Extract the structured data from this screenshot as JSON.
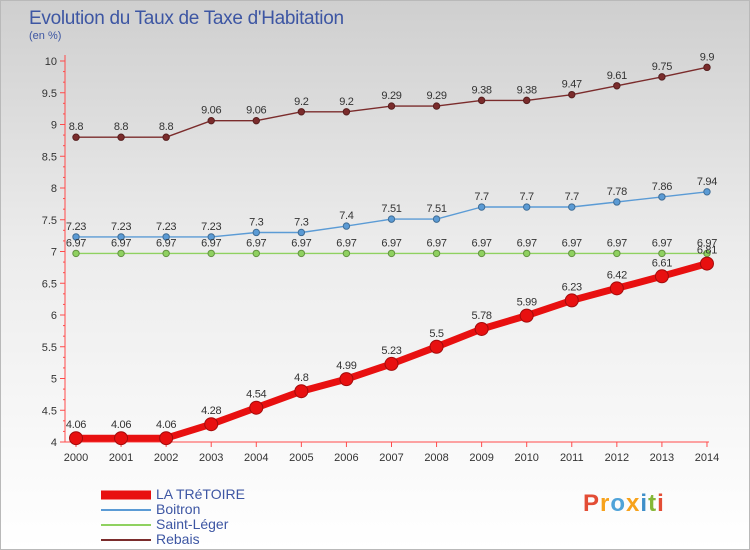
{
  "header": {
    "title": "Evolution du Taux de Taxe d'Habitation",
    "subtitle": "(en %)"
  },
  "logo": {
    "text": "Proxiti",
    "letter_colors": [
      "#e34d35",
      "#f7a21b",
      "#4fa3d9",
      "#f7a21b",
      "#3f8fc9",
      "#84b736",
      "#e34d35"
    ]
  },
  "chart_data": {
    "type": "line",
    "title": "Evolution du Taux de Taxe d'Habitation",
    "subtitle": "(en %)",
    "x": [
      "2000",
      "2001",
      "2002",
      "2003",
      "2004",
      "2005",
      "2006",
      "2007",
      "2008",
      "2009",
      "2010",
      "2011",
      "2012",
      "2013",
      "2014"
    ],
    "ylim": [
      4,
      10
    ],
    "yticks": [
      "4",
      "4.5",
      "5",
      "5.5",
      "6",
      "6.5",
      "7",
      "7.5",
      "8",
      "8.5",
      "9",
      "9.5",
      "10"
    ],
    "grid": false,
    "legend_position": "bottom-left",
    "series": [
      {
        "name": "LA TRéTOIRE",
        "color": "#e81010",
        "emphasis": true,
        "values": [
          4.06,
          4.06,
          4.06,
          4.28,
          4.54,
          4.8,
          4.99,
          5.23,
          5.5,
          5.78,
          5.99,
          6.23,
          6.42,
          6.61,
          6.81
        ],
        "labels": [
          "4.06",
          "4.06",
          "4.06",
          "4.28",
          "4.54",
          "4.8",
          "4.99",
          "5.23",
          "5.5",
          "5.78",
          "5.99",
          "6.23",
          "6.42",
          "6.61",
          "6.81"
        ]
      },
      {
        "name": "Boitron",
        "color": "#5b9bd5",
        "emphasis": false,
        "values": [
          7.23,
          7.23,
          7.23,
          7.23,
          7.3,
          7.3,
          7.4,
          7.51,
          7.51,
          7.7,
          7.7,
          7.7,
          7.78,
          7.86,
          7.94
        ],
        "labels": [
          "7.23",
          "7.23",
          "7.23",
          "7.23",
          "7.3",
          "7.3",
          "7.4",
          "7.51",
          "7.51",
          "7.7",
          "7.7",
          "7.7",
          "7.78",
          "7.86",
          "7.94"
        ]
      },
      {
        "name": "Saint-Léger",
        "color": "#8fd160",
        "emphasis": false,
        "values": [
          6.97,
          6.97,
          6.97,
          6.97,
          6.97,
          6.97,
          6.97,
          6.97,
          6.97,
          6.97,
          6.97,
          6.97,
          6.97,
          6.97,
          6.97
        ],
        "labels": [
          "6.97",
          "6.97",
          "6.97",
          "6.97",
          "6.97",
          "6.97",
          "6.97",
          "6.97",
          "6.97",
          "6.97",
          "6.97",
          "6.97",
          "6.97",
          "6.97",
          "6.97"
        ]
      },
      {
        "name": "Rebais",
        "color": "#7b2c2c",
        "emphasis": false,
        "values": [
          8.8,
          8.8,
          8.8,
          9.06,
          9.06,
          9.2,
          9.2,
          9.29,
          9.29,
          9.38,
          9.38,
          9.47,
          9.61,
          9.75,
          9.9
        ],
        "labels": [
          "8.8",
          "8.8",
          "8.8",
          "9.06",
          "9.06",
          "9.2",
          "9.2",
          "9.29",
          "9.29",
          "9.38",
          "9.38",
          "9.47",
          "9.61",
          "9.75",
          "9.9"
        ]
      }
    ]
  }
}
